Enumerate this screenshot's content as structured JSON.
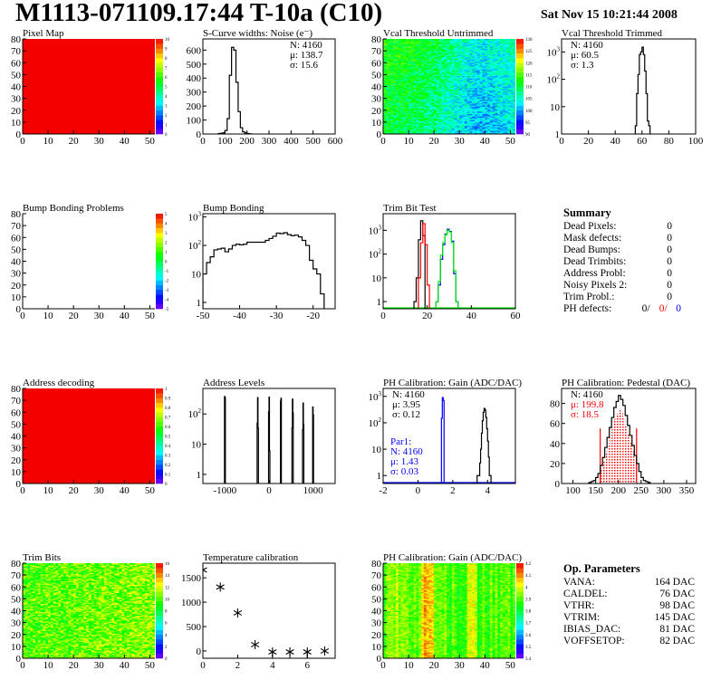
{
  "header": {
    "title": "M1113-071109.17:44 T-10a (C10)",
    "date": "Sat Nov 15 10:21:44 2008"
  },
  "colors": {
    "ph_defect_1": "#000000",
    "ph_defect_2": "#ff0000",
    "ph_defect_3": "#0000ff",
    "trim_series": [
      "#000000",
      "#ff0000",
      "#0000ff",
      "#00ee00"
    ],
    "gain_par1": "#0000ff",
    "pedestal_fill": "#ff0000"
  },
  "chart_data": [
    {
      "id": "pixel-map",
      "type": "heatmap",
      "title": "Pixel Map",
      "xlim": [
        0,
        52
      ],
      "ylim": [
        0,
        80
      ],
      "xticks": [
        0,
        10,
        20,
        30,
        40,
        50
      ],
      "yticks": [
        0,
        10,
        20,
        30,
        40,
        50,
        60,
        70,
        80
      ],
      "fill": "uniform",
      "z_value": 10,
      "z_range": [
        0,
        10
      ],
      "palette_labels": [
        "0",
        "1",
        "2",
        "3",
        "4",
        "5",
        "6",
        "7",
        "8",
        "9",
        "10"
      ]
    },
    {
      "id": "s-curve-widths",
      "type": "bar",
      "title": "S-Curve widths: Noise (e⁻)",
      "xlim": [
        0,
        600
      ],
      "ylim": [
        0,
        680
      ],
      "log_y": false,
      "xticks": [
        0,
        100,
        200,
        300,
        400,
        500,
        600
      ],
      "yticks": [
        0,
        100,
        200,
        300,
        400,
        500,
        600
      ],
      "bins": {
        "start": 70,
        "width": 10,
        "values": [
          3,
          5,
          8,
          25,
          110,
          420,
          620,
          600,
          370,
          160,
          45,
          15,
          8,
          3,
          1
        ]
      },
      "stats": [
        "N: 4160",
        "μ: 138.7",
        "σ: 15.6"
      ]
    },
    {
      "id": "vcal-threshold-untrimmed",
      "type": "heatmap",
      "title": "Vcal Threshold Untrimmed",
      "xlim": [
        0,
        52
      ],
      "ylim": [
        0,
        80
      ],
      "xticks": [
        0,
        10,
        20,
        30,
        40,
        50
      ],
      "yticks": [
        0,
        10,
        20,
        30,
        40,
        50,
        60,
        70,
        80
      ],
      "fill": "random",
      "z_range": [
        88,
        140
      ],
      "z_mean": 106,
      "palette_labels": [
        "90",
        "95",
        "100",
        "105",
        "110",
        "115",
        "120",
        "125",
        "130"
      ]
    },
    {
      "id": "vcal-threshold-trimmed",
      "type": "bar",
      "title": "Vcal Threshold Trimmed",
      "xlim": [
        0,
        100
      ],
      "ylim": [
        1,
        3000
      ],
      "log_y": true,
      "xticks": [
        0,
        20,
        40,
        60,
        80,
        100
      ],
      "yticks": [
        1,
        10,
        100,
        1000
      ],
      "bins": {
        "start": 55,
        "width": 1,
        "values": [
          2,
          30,
          150,
          800,
          1000,
          1500,
          800,
          200,
          30,
          3,
          2
        ]
      },
      "stats": [
        "N: 4160",
        "μ: 60.5",
        "σ:  1.3"
      ]
    },
    {
      "id": "bump-bonding-problems",
      "type": "heatmap",
      "title": "Bump Bonding Problems",
      "xlim": [
        0,
        52
      ],
      "ylim": [
        0,
        80
      ],
      "xticks": [
        0,
        10,
        20,
        30,
        40,
        50
      ],
      "yticks": [
        0,
        10,
        20,
        30,
        40,
        50,
        60,
        70,
        80
      ],
      "fill": "empty",
      "z_range": [
        -5,
        5
      ],
      "palette_labels": [
        "-5",
        "-4",
        "-3",
        "-2",
        "-1",
        "0",
        "1",
        "2",
        "3",
        "4",
        "5"
      ]
    },
    {
      "id": "bump-bonding",
      "type": "bar",
      "title": "Bump Bonding",
      "xlim": [
        -50,
        -14
      ],
      "ylim": [
        0.6,
        1300
      ],
      "log_y": true,
      "xticks": [
        -50,
        -40,
        -30,
        -20
      ],
      "yticks": [
        1,
        10,
        100,
        1000
      ],
      "bins": {
        "start": -50,
        "width": 1,
        "values": [
          10,
          25,
          40,
          70,
          75,
          80,
          60,
          75,
          100,
          110,
          105,
          110,
          130,
          130,
          130,
          130,
          130,
          150,
          175,
          210,
          270,
          260,
          280,
          240,
          220,
          230,
          200,
          150,
          100,
          30,
          15,
          10,
          2
        ]
      }
    },
    {
      "id": "trim-bit-test",
      "type": "bar",
      "title": "Trim Bit Test",
      "xlim": [
        0,
        60
      ],
      "ylim": [
        0.5,
        5000
      ],
      "log_y": true,
      "xticks": [
        0,
        20,
        40,
        60
      ],
      "yticks": [
        1,
        10,
        100,
        1000
      ],
      "series": [
        {
          "start": 14,
          "width": 1,
          "values": [
            1,
            10,
            400,
            2500,
            600,
            0
          ]
        },
        {
          "start": 15,
          "width": 1,
          "values": [
            0,
            10,
            300,
            1900,
            250,
            5,
            0
          ]
        },
        {
          "start": 23,
          "width": 1,
          "values": [
            0,
            1,
            5,
            60,
            250,
            700,
            1100,
            900,
            350,
            15,
            1,
            0
          ]
        },
        {
          "start": 23,
          "width": 1,
          "values": [
            0,
            1,
            7,
            90,
            300,
            650,
            1000,
            850,
            300,
            20,
            1,
            0
          ]
        }
      ]
    },
    {
      "id": "summary",
      "type": "table"
    },
    {
      "id": "address-decoding",
      "type": "heatmap",
      "title": "Address decoding",
      "xlim": [
        0,
        52
      ],
      "ylim": [
        0,
        80
      ],
      "xticks": [
        0,
        10,
        20,
        30,
        40,
        50
      ],
      "yticks": [
        0,
        10,
        20,
        30,
        40,
        50,
        60,
        70,
        80
      ],
      "fill": "uniform",
      "z_value": 1,
      "z_range": [
        0,
        1
      ],
      "palette_labels": [
        "0",
        "0.1",
        "0.2",
        "0.3",
        "0.4",
        "0.5",
        "0.6",
        "0.7",
        "0.8",
        "0.9",
        "1"
      ]
    },
    {
      "id": "address-levels",
      "type": "bar",
      "title": "Address Levels",
      "xlim": [
        -1500,
        1500
      ],
      "ylim": [
        0.5,
        700
      ],
      "log_y": true,
      "xticks": [
        -1000,
        0,
        1000
      ],
      "yticks": [
        1,
        10,
        100
      ],
      "peaks": [
        {
          "start": -1010,
          "width": 10,
          "values": [
            380,
            350
          ]
        },
        {
          "start": -270,
          "width": 10,
          "values": [
            50,
            350,
            35
          ]
        },
        {
          "start": -10,
          "width": 10,
          "values": [
            120,
            360,
            6
          ]
        },
        {
          "start": 260,
          "width": 10,
          "values": [
            270,
            330
          ]
        },
        {
          "start": 520,
          "width": 10,
          "values": [
            35,
            310,
            110
          ]
        },
        {
          "start": 760,
          "width": 10,
          "values": [
            30,
            230,
            45
          ]
        },
        {
          "start": 990,
          "width": 10,
          "values": [
            170,
            95
          ]
        }
      ]
    },
    {
      "id": "ph-calibration-gain",
      "type": "bar",
      "title": "PH Calibration: Gain (ADC/DAC)",
      "xlim": [
        -2,
        5.6
      ],
      "ylim": [
        0.5,
        2000
      ],
      "log_y": true,
      "xticks": [
        -2,
        0,
        2,
        4
      ],
      "yticks": [
        1,
        10,
        100,
        1000
      ],
      "series": [
        {
          "start": 3.4,
          "width": 0.05,
          "values": [
            1,
            1,
            1,
            3,
            10,
            40,
            120,
            250,
            350,
            300,
            160,
            60,
            20,
            5,
            1,
            1,
            0
          ]
        },
        {
          "start": 1.35,
          "width": 0.05,
          "values": [
            150,
            900,
            700,
            0
          ]
        }
      ],
      "stats": [
        "N: 4160",
        "μ: 3.95",
        "σ: 0.12"
      ],
      "stats2": [
        "Par1:",
        "N: 4160",
        "μ: 1.43",
        "σ: 0.03"
      ]
    },
    {
      "id": "ph-calibration-pedestal",
      "type": "bar",
      "title": "PH Calibration: Pedestal (DAC)",
      "xlim": [
        75,
        370
      ],
      "ylim": [
        0,
        95
      ],
      "log_y": false,
      "xticks": [
        100,
        150,
        200,
        250,
        300,
        350
      ],
      "yticks": [
        0,
        20,
        40,
        60,
        80
      ],
      "bins": {
        "start": 135,
        "width": 5,
        "values": [
          1,
          2,
          3,
          6,
          10,
          18,
          26,
          36,
          46,
          56,
          66,
          76,
          82,
          88,
          84,
          78,
          68,
          58,
          48,
          38,
          28,
          20,
          12,
          6,
          3,
          2,
          1
        ]
      },
      "fill_range": [
        160,
        240
      ],
      "stats": [
        "N: 4160",
        "μ: 199.8",
        "σ: 18.5"
      ]
    },
    {
      "id": "trim-bits",
      "type": "heatmap",
      "title": "Trim Bits",
      "xlim": [
        0,
        52
      ],
      "ylim": [
        0,
        80
      ],
      "xticks": [
        0,
        10,
        20,
        30,
        40,
        50
      ],
      "yticks": [
        0,
        10,
        20,
        30,
        40,
        50,
        60,
        70,
        80
      ],
      "fill": "random",
      "z_range": [
        0,
        16
      ],
      "z_mean": 10.5,
      "palette_labels": [
        "0",
        "2",
        "4",
        "6",
        "8",
        "10",
        "12",
        "14",
        "16"
      ]
    },
    {
      "id": "temperature-calibration",
      "type": "scatter",
      "title": "Temperature calibration",
      "xlim": [
        0,
        7.6
      ],
      "ylim": [
        -150,
        1800
      ],
      "xticks": [
        0,
        2,
        4,
        6
      ],
      "yticks": [
        0,
        500,
        1000,
        1500
      ],
      "x": [
        0,
        1,
        2,
        3,
        4,
        5,
        6,
        7
      ],
      "y": [
        1660,
        1310,
        780,
        130,
        -20,
        -20,
        -20,
        0
      ]
    },
    {
      "id": "ph-calibration-gain-map",
      "type": "heatmap",
      "title": "PH Calibration: Gain (ADC/DAC)",
      "xlim": [
        0,
        52
      ],
      "ylim": [
        0,
        80
      ],
      "xticks": [
        0,
        10,
        20,
        30,
        40,
        50
      ],
      "yticks": [
        0,
        10,
        20,
        30,
        40,
        50,
        60,
        70,
        80
      ],
      "fill": "random",
      "z_range": [
        3.4,
        4.3
      ],
      "z_mean": 3.95,
      "palette_labels": [
        "3.4",
        "3.5",
        "3.6",
        "3.7",
        "3.8",
        "3.9",
        "4",
        "4.1",
        "4.2"
      ]
    },
    {
      "id": "op-parameters",
      "type": "table"
    }
  ],
  "summary": {
    "title": "Summary",
    "rows": [
      {
        "label": "Dead Pixels:",
        "value": "0"
      },
      {
        "label": "Mask defects:",
        "value": "0"
      },
      {
        "label": "Dead Bumps:",
        "value": "0"
      },
      {
        "label": "Dead Trimbits:",
        "value": "0"
      },
      {
        "label": "Address Probl:",
        "value": "0"
      },
      {
        "label": "Noisy Pixels 2:",
        "value": "0"
      },
      {
        "label": "Trim Probl.:",
        "value": "0"
      }
    ],
    "ph_defects": {
      "label": "PH defects:",
      "values": [
        "0/",
        "0/",
        "0"
      ]
    }
  },
  "op_parameters": {
    "title": "Op. Parameters",
    "rows": [
      {
        "label": "VANA:",
        "value": "164 DAC"
      },
      {
        "label": "CALDEL:",
        "value": "76 DAC"
      },
      {
        "label": "VTHR:",
        "value": "98 DAC"
      },
      {
        "label": "VTRIM:",
        "value": "145 DAC"
      },
      {
        "label": "IBIAS_DAC:",
        "value": "81 DAC"
      },
      {
        "label": "VOFFSETOP:",
        "value": "82 DAC"
      }
    ]
  }
}
